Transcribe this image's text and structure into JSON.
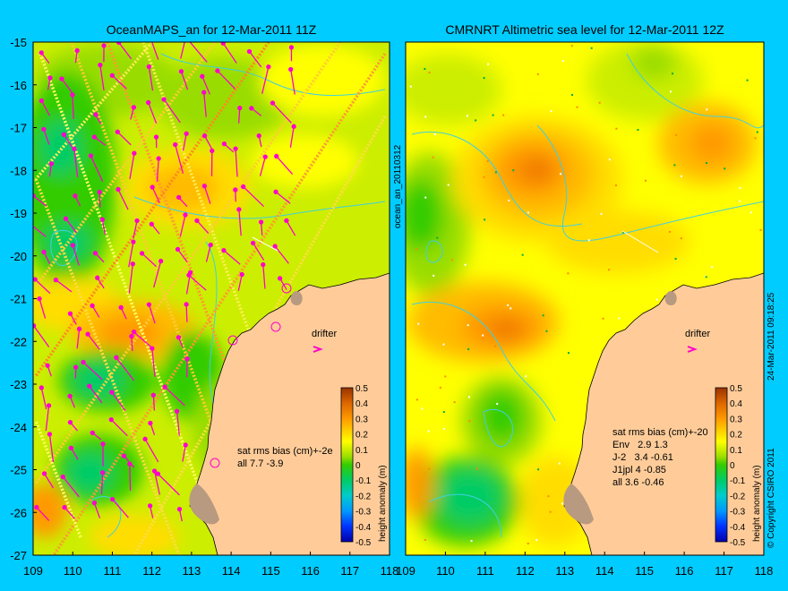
{
  "colors": {
    "background": "#00ccff",
    "land": "#ffcc99",
    "coast_shallow": "#b89a80",
    "contour_line": "#40d0e0",
    "vector": "#ff00cc",
    "drifter": "#ff00cc",
    "scale": [
      "#0000aa",
      "#0033ff",
      "#0099ff",
      "#00cccc",
      "#00cc66",
      "#33cc00",
      "#99dd00",
      "#ccee00",
      "#ffff00",
      "#ffdd00",
      "#ffbb00",
      "#ff9900",
      "#ee7700",
      "#cc5500",
      "#993300"
    ]
  },
  "panels": [
    {
      "title": "OceanMAPS_an for 12-Mar-2011 11Z",
      "side_label": "ocean_an_20110312",
      "drifter_label": "drifter",
      "stats": [
        "sat rms bias (cm)+-2e",
        "all 7.7 -3.9"
      ],
      "colorbar_label": "height anomaly (m)"
    },
    {
      "title": "CMRNRT Altimetric sea level  for 12-Mar-2011 12Z",
      "side_label": "24-Mar-2011 09:18:25",
      "copyright": "© Copyright CSIRO 2011",
      "drifter_label": "drifter",
      "stats": [
        "sat rms bias (cm)+-20",
        "Env   2.9 1.3",
        "J-2   3.4 -0.61",
        "J1jpl 4 -0.85",
        "all 3.6 -0.46"
      ],
      "colorbar_label": "height anomaly (m)"
    }
  ],
  "axes": {
    "lon_ticks": [
      "109",
      "110",
      "111",
      "112",
      "113",
      "114",
      "115",
      "116",
      "117",
      "118"
    ],
    "lat_ticks": [
      "-15",
      "-16",
      "-17",
      "-18",
      "-19",
      "-20",
      "-21",
      "-22",
      "-23",
      "-24",
      "-25",
      "-26",
      "-27"
    ],
    "lon_range": [
      109,
      118
    ],
    "lat_range": [
      -15,
      -27
    ]
  },
  "colorbar": {
    "ticks": [
      "0.5",
      "0.4",
      "0.3",
      "0.2",
      "0.1",
      "0",
      "-0.1",
      "-0.2",
      "-0.3",
      "-0.4",
      "-0.5"
    ],
    "range": [
      -0.5,
      0.5
    ]
  }
}
